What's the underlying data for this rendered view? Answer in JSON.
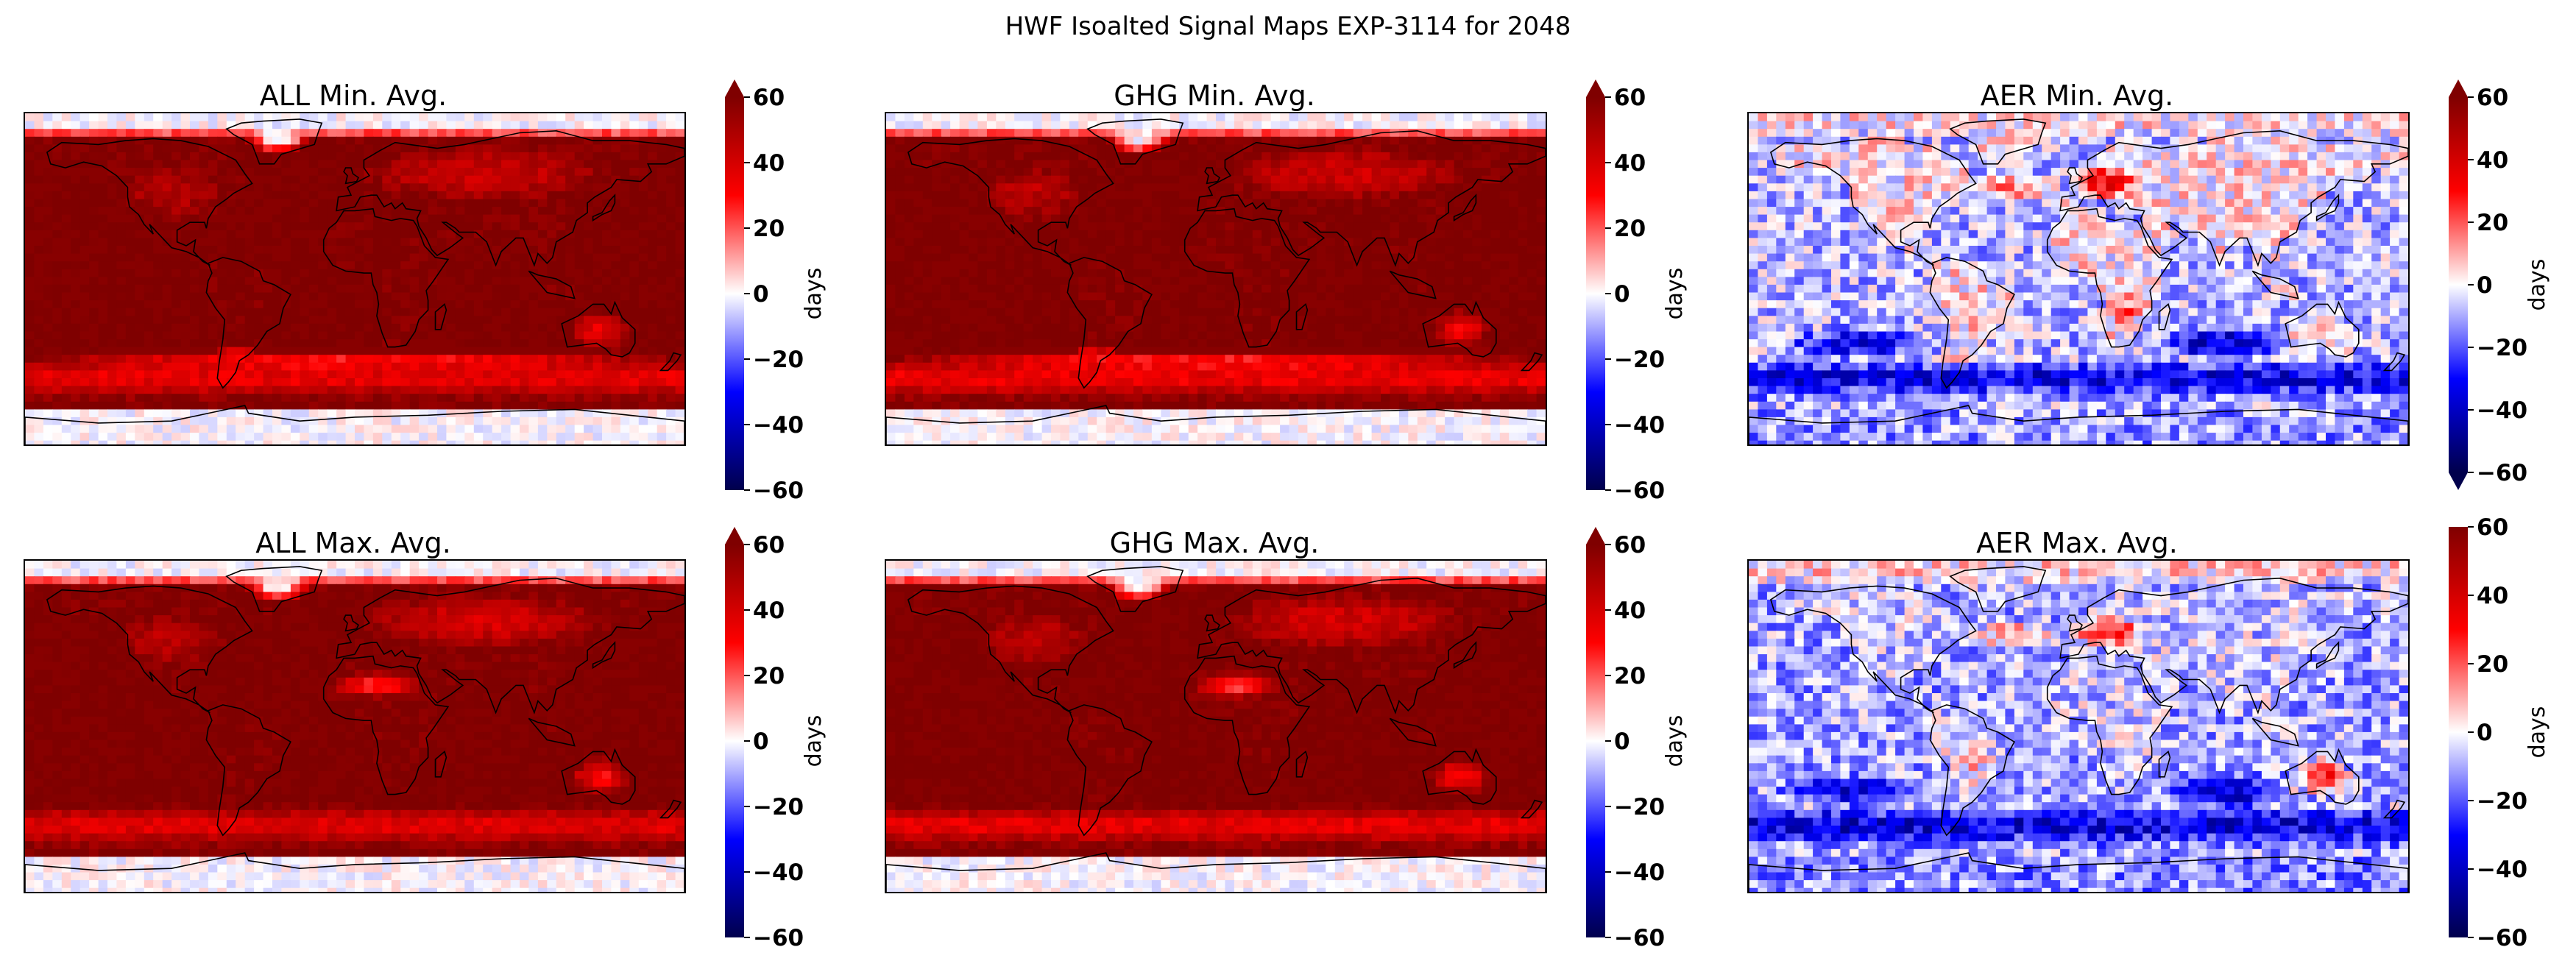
{
  "figure": {
    "title": "HWF Isoalted Signal Maps EXP-3114 for 2048"
  },
  "colormap": {
    "name": "seismic",
    "stops": [
      "#00004c",
      "#0000ff",
      "#ffffff",
      "#ff0000",
      "#7f0000"
    ],
    "range": [
      -60,
      60
    ]
  },
  "chart_data": [
    {
      "type": "heatmap",
      "id": "all-min",
      "title": "ALL Min. Avg.",
      "clabel": "days",
      "ticks": [
        "60",
        "40",
        "20",
        "0",
        "−20",
        "−40",
        "−60"
      ],
      "extend": "max",
      "ocean_value": 60,
      "land_value": 60,
      "polar_north_value": 0,
      "polar_south_value": 0,
      "southern_band_value": 32,
      "noise": 6,
      "features": [
        {
          "region": "greenland",
          "value": 0
        },
        {
          "region": "north-atlantic-spot",
          "value": 30
        },
        {
          "region": "eurasia",
          "value": 42
        },
        {
          "region": "north-america",
          "value": 48
        },
        {
          "region": "australia",
          "value": 34
        },
        {
          "region": "southern-ocean",
          "value": 30
        }
      ]
    },
    {
      "type": "heatmap",
      "id": "ghg-min",
      "title": "GHG Min. Avg.",
      "clabel": "days",
      "ticks": [
        "60",
        "40",
        "20",
        "0",
        "−20",
        "−40",
        "−60"
      ],
      "extend": "max",
      "ocean_value": 60,
      "land_value": 60,
      "polar_north_value": 0,
      "polar_south_value": 0,
      "southern_band_value": 30,
      "noise": 6,
      "features": [
        {
          "region": "greenland",
          "value": 0
        },
        {
          "region": "north-atlantic-spot",
          "value": 10
        },
        {
          "region": "eurasia",
          "value": 42
        },
        {
          "region": "north-america",
          "value": 46
        },
        {
          "region": "australia",
          "value": 34
        },
        {
          "region": "southern-ocean",
          "value": 28
        }
      ]
    },
    {
      "type": "heatmap",
      "id": "aer-min",
      "title": "AER Min. Avg.",
      "clabel": "days",
      "ticks": [
        "60",
        "40",
        "20",
        "0",
        "−20",
        "−40",
        "−60"
      ],
      "extend": "both",
      "ocean_value": -8,
      "land_value": 2,
      "polar_north_value": 2,
      "polar_south_value": -12,
      "southern_band_value": -38,
      "noise": 14,
      "features": [
        {
          "region": "europe",
          "value": 34
        },
        {
          "region": "north-atlantic",
          "value": 12
        },
        {
          "region": "south-america",
          "value": 5
        },
        {
          "region": "southern-africa",
          "value": 18
        },
        {
          "region": "south-indian-ocean",
          "value": -40
        },
        {
          "region": "south-pacific",
          "value": -32
        }
      ]
    },
    {
      "type": "heatmap",
      "id": "all-max",
      "title": "ALL Max. Avg.",
      "clabel": "days",
      "ticks": [
        "60",
        "40",
        "20",
        "0",
        "−20",
        "−40",
        "−60"
      ],
      "extend": "max",
      "ocean_value": 60,
      "land_value": 60,
      "polar_north_value": 0,
      "polar_south_value": 0,
      "southern_band_value": 34,
      "noise": 6,
      "features": [
        {
          "region": "greenland",
          "value": 0
        },
        {
          "region": "north-atlantic-spot",
          "value": 30
        },
        {
          "region": "eurasia",
          "value": 40
        },
        {
          "region": "north-america",
          "value": 46
        },
        {
          "region": "sahara",
          "value": 26
        },
        {
          "region": "australia",
          "value": 30
        }
      ]
    },
    {
      "type": "heatmap",
      "id": "ghg-max",
      "title": "GHG Max. Avg.",
      "clabel": "days",
      "ticks": [
        "60",
        "40",
        "20",
        "0",
        "−20",
        "−40",
        "−60"
      ],
      "extend": "max",
      "ocean_value": 60,
      "land_value": 60,
      "polar_north_value": 0,
      "polar_south_value": 0,
      "southern_band_value": 32,
      "noise": 6,
      "features": [
        {
          "region": "greenland",
          "value": 0
        },
        {
          "region": "north-atlantic-spot",
          "value": 0
        },
        {
          "region": "eurasia",
          "value": 40
        },
        {
          "region": "north-america",
          "value": 44
        },
        {
          "region": "sahara",
          "value": 24
        },
        {
          "region": "australia",
          "value": 30
        }
      ]
    },
    {
      "type": "heatmap",
      "id": "aer-max",
      "title": "AER Max. Avg.",
      "clabel": "days",
      "ticks": [
        "60",
        "40",
        "20",
        "0",
        "−20",
        "−40",
        "−60"
      ],
      "extend": "neither",
      "ocean_value": -10,
      "land_value": -6,
      "polar_north_value": 4,
      "polar_south_value": -14,
      "southern_band_value": -40,
      "noise": 14,
      "features": [
        {
          "region": "europe",
          "value": 30
        },
        {
          "region": "north-atlantic",
          "value": 12
        },
        {
          "region": "australia",
          "value": 24
        },
        {
          "region": "south-america",
          "value": 6
        },
        {
          "region": "south-indian-ocean",
          "value": -40
        },
        {
          "region": "south-pacific",
          "value": -34
        }
      ]
    }
  ]
}
